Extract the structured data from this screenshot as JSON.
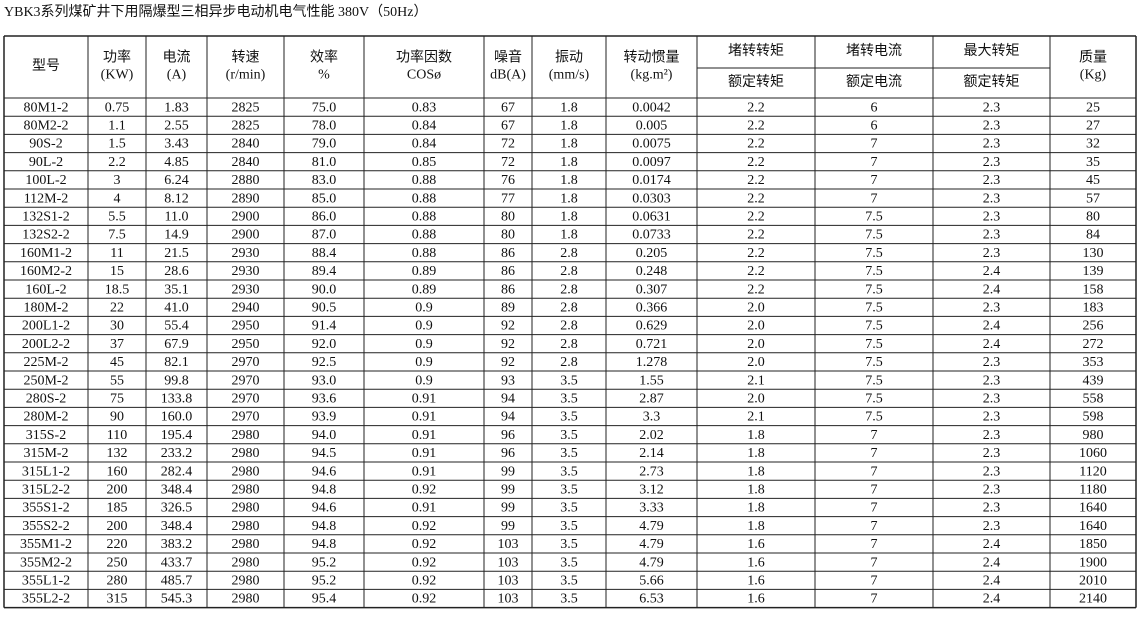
{
  "title": "YBK3系列煤矿井下用隔爆型三相异步电动机电气性能 380V（50Hz）",
  "table": {
    "header": [
      [
        "型号"
      ],
      [
        "功率",
        "(KW)"
      ],
      [
        "电流",
        "(A)"
      ],
      [
        "转速",
        "(r/min)"
      ],
      [
        "效率",
        "%"
      ],
      [
        "功率因数",
        "COSø"
      ],
      [
        "噪音",
        "dB(A)"
      ],
      [
        "振动",
        "(mm/s)"
      ],
      [
        "转动惯量",
        "(kg.m²)"
      ],
      [
        "堵转转矩",
        "额定转矩"
      ],
      [
        "堵转电流",
        "额定电流"
      ],
      [
        "最大转矩",
        "额定转矩"
      ],
      [
        "质量",
        "(Kg)"
      ]
    ],
    "rows": [
      [
        "80M1-2",
        "0.75",
        "1.83",
        "2825",
        "75.0",
        "0.83",
        "67",
        "1.8",
        "0.0042",
        "2.2",
        "6",
        "2.3",
        "25"
      ],
      [
        "80M2-2",
        "1.1",
        "2.55",
        "2825",
        "78.0",
        "0.84",
        "67",
        "1.8",
        "0.005",
        "2.2",
        "6",
        "2.3",
        "27"
      ],
      [
        "90S-2",
        "1.5",
        "3.43",
        "2840",
        "79.0",
        "0.84",
        "72",
        "1.8",
        "0.0075",
        "2.2",
        "7",
        "2.3",
        "32"
      ],
      [
        "90L-2",
        "2.2",
        "4.85",
        "2840",
        "81.0",
        "0.85",
        "72",
        "1.8",
        "0.0097",
        "2.2",
        "7",
        "2.3",
        "35"
      ],
      [
        "100L-2",
        "3",
        "6.24",
        "2880",
        "83.0",
        "0.88",
        "76",
        "1.8",
        "0.0174",
        "2.2",
        "7",
        "2.3",
        "45"
      ],
      [
        "112M-2",
        "4",
        "8.12",
        "2890",
        "85.0",
        "0.88",
        "77",
        "1.8",
        "0.0303",
        "2.2",
        "7",
        "2.3",
        "57"
      ],
      [
        "132S1-2",
        "5.5",
        "11.0",
        "2900",
        "86.0",
        "0.88",
        "80",
        "1.8",
        "0.0631",
        "2.2",
        "7.5",
        "2.3",
        "80"
      ],
      [
        "132S2-2",
        "7.5",
        "14.9",
        "2900",
        "87.0",
        "0.88",
        "80",
        "1.8",
        "0.0733",
        "2.2",
        "7.5",
        "2.3",
        "84"
      ],
      [
        "160M1-2",
        "11",
        "21.5",
        "2930",
        "88.4",
        "0.88",
        "86",
        "2.8",
        "0.205",
        "2.2",
        "7.5",
        "2.3",
        "130"
      ],
      [
        "160M2-2",
        "15",
        "28.6",
        "2930",
        "89.4",
        "0.89",
        "86",
        "2.8",
        "0.248",
        "2.2",
        "7.5",
        "2.4",
        "139"
      ],
      [
        "160L-2",
        "18.5",
        "35.1",
        "2930",
        "90.0",
        "0.89",
        "86",
        "2.8",
        "0.307",
        "2.2",
        "7.5",
        "2.4",
        "158"
      ],
      [
        "180M-2",
        "22",
        "41.0",
        "2940",
        "90.5",
        "0.9",
        "89",
        "2.8",
        "0.366",
        "2.0",
        "7.5",
        "2.3",
        "183"
      ],
      [
        "200L1-2",
        "30",
        "55.4",
        "2950",
        "91.4",
        "0.9",
        "92",
        "2.8",
        "0.629",
        "2.0",
        "7.5",
        "2.4",
        "256"
      ],
      [
        "200L2-2",
        "37",
        "67.9",
        "2950",
        "92.0",
        "0.9",
        "92",
        "2.8",
        "0.721",
        "2.0",
        "7.5",
        "2.4",
        "272"
      ],
      [
        "225M-2",
        "45",
        "82.1",
        "2970",
        "92.5",
        "0.9",
        "92",
        "2.8",
        "1.278",
        "2.0",
        "7.5",
        "2.3",
        "353"
      ],
      [
        "250M-2",
        "55",
        "99.8",
        "2970",
        "93.0",
        "0.9",
        "93",
        "3.5",
        "1.55",
        "2.1",
        "7.5",
        "2.3",
        "439"
      ],
      [
        "280S-2",
        "75",
        "133.8",
        "2970",
        "93.6",
        "0.91",
        "94",
        "3.5",
        "2.87",
        "2.0",
        "7.5",
        "2.3",
        "558"
      ],
      [
        "280M-2",
        "90",
        "160.0",
        "2970",
        "93.9",
        "0.91",
        "94",
        "3.5",
        "3.3",
        "2.1",
        "7.5",
        "2.3",
        "598"
      ],
      [
        "315S-2",
        "110",
        "195.4",
        "2980",
        "94.0",
        "0.91",
        "96",
        "3.5",
        "2.02",
        "1.8",
        "7",
        "2.3",
        "980"
      ],
      [
        "315M-2",
        "132",
        "233.2",
        "2980",
        "94.5",
        "0.91",
        "96",
        "3.5",
        "2.14",
        "1.8",
        "7",
        "2.3",
        "1060"
      ],
      [
        "315L1-2",
        "160",
        "282.4",
        "2980",
        "94.6",
        "0.91",
        "99",
        "3.5",
        "2.73",
        "1.8",
        "7",
        "2.3",
        "1120"
      ],
      [
        "315L2-2",
        "200",
        "348.4",
        "2980",
        "94.8",
        "0.92",
        "99",
        "3.5",
        "3.12",
        "1.8",
        "7",
        "2.3",
        "1180"
      ],
      [
        "355S1-2",
        "185",
        "326.5",
        "2980",
        "94.6",
        "0.91",
        "99",
        "3.5",
        "3.33",
        "1.8",
        "7",
        "2.3",
        "1640"
      ],
      [
        "355S2-2",
        "200",
        "348.4",
        "2980",
        "94.8",
        "0.92",
        "99",
        "3.5",
        "4.79",
        "1.8",
        "7",
        "2.3",
        "1640"
      ],
      [
        "355M1-2",
        "220",
        "383.2",
        "2980",
        "94.8",
        "0.92",
        "103",
        "3.5",
        "4.79",
        "1.6",
        "7",
        "2.4",
        "1850"
      ],
      [
        "355M2-2",
        "250",
        "433.7",
        "2980",
        "95.2",
        "0.92",
        "103",
        "3.5",
        "4.79",
        "1.6",
        "7",
        "2.4",
        "1900"
      ],
      [
        "355L1-2",
        "280",
        "485.7",
        "2980",
        "95.2",
        "0.92",
        "103",
        "3.5",
        "5.66",
        "1.6",
        "7",
        "2.4",
        "2010"
      ],
      [
        "355L2-2",
        "315",
        "545.3",
        "2980",
        "95.4",
        "0.92",
        "103",
        "3.5",
        "6.53",
        "1.6",
        "7",
        "2.4",
        "2140"
      ]
    ]
  }
}
